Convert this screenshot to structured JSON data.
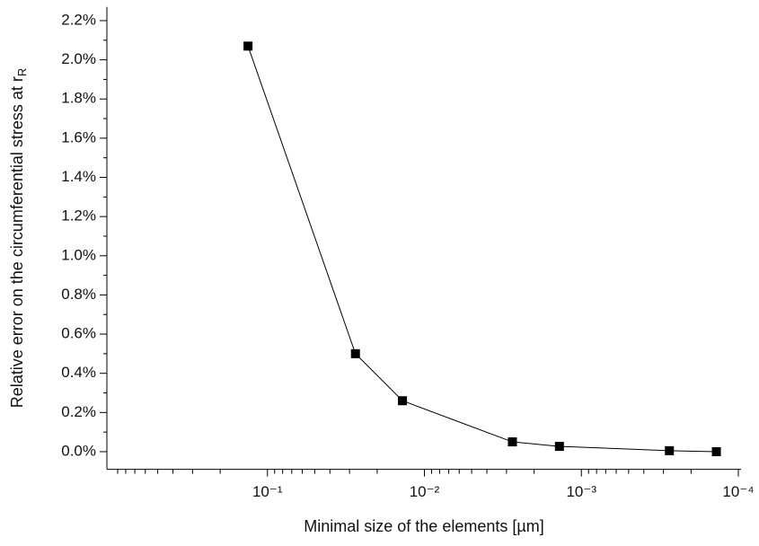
{
  "chart_data": {
    "type": "line",
    "xlabel": "Minimal size of the elements [µm]",
    "ylabel": {
      "text": "Relative error on the circumferential stress at r",
      "sub": "R"
    },
    "x": [
      0.133,
      0.0275,
      0.0138,
      0.00275,
      0.00138,
      0.000275,
      0.000138
    ],
    "values": [
      2.07,
      0.5,
      0.26,
      0.05,
      0.027,
      0.005,
      0
    ],
    "color": "#000000",
    "xscale": "log",
    "xlim": [
      1,
      0.0001
    ],
    "xticks": [
      {
        "value": 0.1,
        "label": "10⁻¹"
      },
      {
        "value": 0.01,
        "label": "10⁻²"
      },
      {
        "value": 0.001,
        "label": "10⁻³"
      },
      {
        "value": 0.0001,
        "label": "10⁻⁴"
      }
    ],
    "xminorticks": [
      0.9,
      0.8,
      0.7,
      0.6,
      0.5,
      0.4,
      0.3,
      0.2,
      0.09,
      0.08,
      0.07,
      0.06,
      0.05,
      0.04,
      0.03,
      0.02,
      0.009,
      0.008,
      0.007,
      0.006,
      0.005,
      0.004,
      0.003,
      0.002,
      0.0009,
      0.0008,
      0.0007,
      0.0006,
      0.0005,
      0.0004,
      0.0003,
      0.0002
    ],
    "ylim": [
      -0.09,
      2.27
    ],
    "yticks": [
      {
        "value": 0,
        "label": "0.0%"
      },
      {
        "value": 0.2,
        "label": "0.2%"
      },
      {
        "value": 0.4,
        "label": "0.4%"
      },
      {
        "value": 0.6,
        "label": "0.6%"
      },
      {
        "value": 0.8,
        "label": "0.8%"
      },
      {
        "value": 1.0,
        "label": "1.0%"
      },
      {
        "value": 1.2,
        "label": "1.2%"
      },
      {
        "value": 1.4,
        "label": "1.4%"
      },
      {
        "value": 1.6,
        "label": "1.6%"
      },
      {
        "value": 1.8,
        "label": "1.8%"
      },
      {
        "value": 2.0,
        "label": "2.0%"
      },
      {
        "value": 2.2,
        "label": "2.2%"
      }
    ],
    "yminorticks": [
      0.1,
      0.3,
      0.5,
      0.7,
      0.9,
      1.1,
      1.3,
      1.5,
      1.7,
      1.9,
      2.1
    ],
    "grid": false
  }
}
